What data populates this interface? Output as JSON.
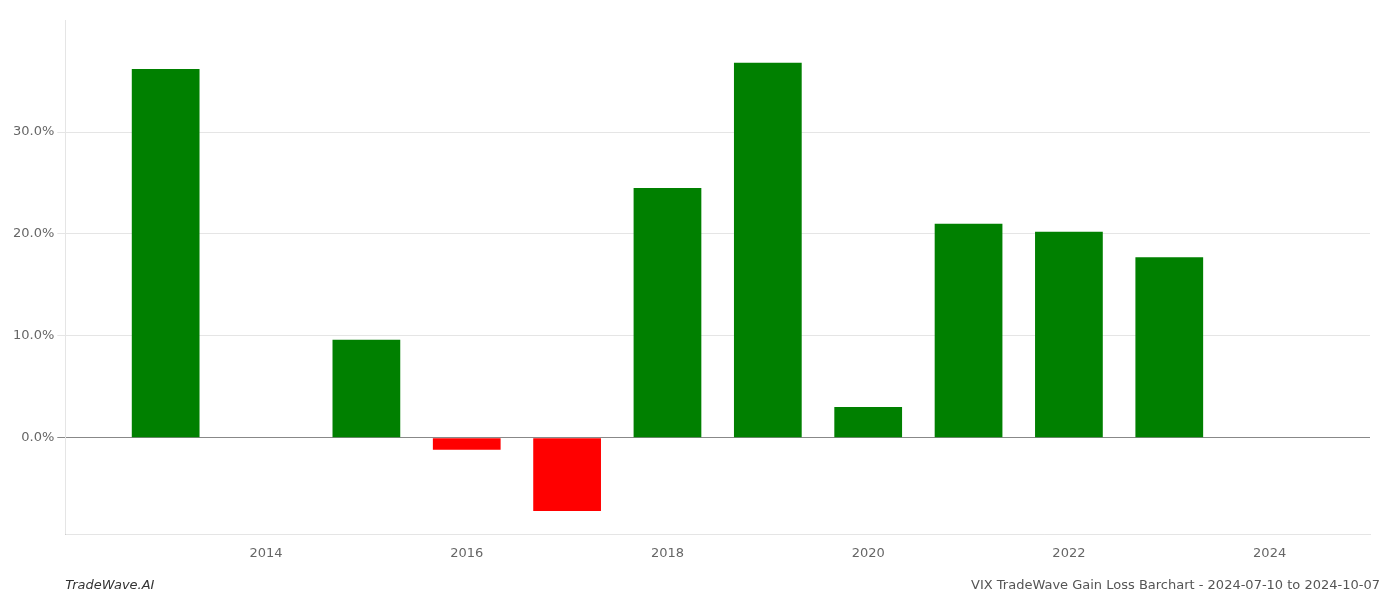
{
  "chart_data": {
    "type": "bar",
    "x": [
      2013,
      2015,
      2016,
      2017,
      2018,
      2019,
      2020,
      2021,
      2022,
      2023
    ],
    "values": [
      0.362,
      0.096,
      -0.012,
      -0.072,
      0.245,
      0.368,
      0.03,
      0.21,
      0.202,
      0.177
    ],
    "colors": [
      "#008000",
      "#008000",
      "#ff0000",
      "#ff0000",
      "#008000",
      "#008000",
      "#008000",
      "#008000",
      "#008000",
      "#008000"
    ],
    "xlim": [
      2012,
      2025
    ],
    "xticks": [
      2014,
      2016,
      2018,
      2020,
      2022,
      2024
    ],
    "ylim": [
      -0.095,
      0.41
    ],
    "yticks": [
      {
        "value": 0.0,
        "label": "0.0%"
      },
      {
        "value": 0.1,
        "label": "10.0%"
      },
      {
        "value": 0.2,
        "label": "20.0%"
      },
      {
        "value": 0.3,
        "label": "30.0%"
      }
    ],
    "grid": true,
    "annotations": [
      "TradeWave.AI",
      "VIX TradeWave Gain Loss Barchart - 2024-07-10 to 2024-10-07"
    ]
  }
}
